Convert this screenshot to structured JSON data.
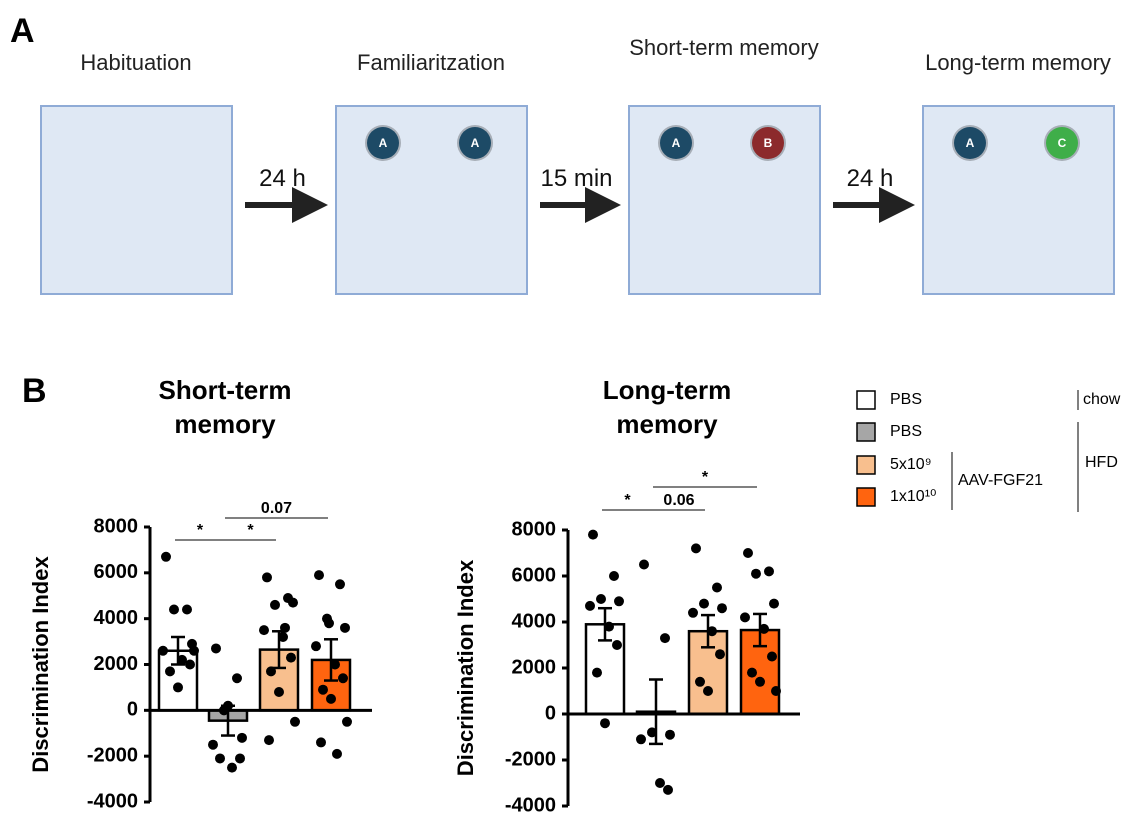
{
  "panel_labels": [
    "A",
    "B"
  ],
  "protocol": {
    "stages": [
      {
        "title": "Habituation",
        "objects": []
      },
      {
        "title": "Familiaritzation",
        "objects": [
          {
            "label": "A",
            "color": "#1d4a66"
          },
          {
            "label": "A",
            "color": "#1d4a66"
          }
        ]
      },
      {
        "title": "Short-term memory",
        "objects": [
          {
            "label": "A",
            "color": "#1d4a66"
          },
          {
            "label": "B",
            "color": "#8c2a2c"
          }
        ]
      },
      {
        "title": "Long-term memory",
        "objects": [
          {
            "label": "A",
            "color": "#1d4a66"
          },
          {
            "label": "C",
            "color": "#3fae49"
          }
        ]
      }
    ],
    "intervals": [
      "24 h",
      "15 min",
      "24 h"
    ]
  },
  "legend": {
    "groups": [
      "chow",
      "HFD",
      "AAV-FGF21"
    ]
  },
  "chart_data": [
    {
      "type": "bar",
      "title": "Short-term memory",
      "ylabel": "Discrimination Index",
      "categories": [
        null
      ],
      "ylim": [
        -4000,
        8000
      ],
      "yticks": [
        -4000,
        -2000,
        0,
        2000,
        4000,
        6000,
        8000
      ],
      "series": [
        {
          "name": "PBS",
          "color": "#ffffff",
          "values": [
            2600
          ],
          "errors": [
            600
          ],
          "points": [
            6700,
            4400,
            4400,
            2900,
            2600,
            2200,
            2000,
            1700,
            1000,
            2600
          ]
        },
        {
          "name": "PBS",
          "color": "#a6a6a6",
          "values": [
            -450
          ],
          "errors": [
            650
          ],
          "points": [
            2700,
            1400,
            0,
            -1200,
            -1500,
            -2500,
            -2100,
            -2100,
            200
          ]
        },
        {
          "name": "5x10⁹",
          "color": "#f8bf8e",
          "values": [
            2650
          ],
          "errors": [
            800
          ],
          "points": [
            5800,
            4900,
            4600,
            4700,
            3500,
            3200,
            2300,
            1700,
            800,
            -500,
            -1300,
            3600
          ]
        },
        {
          "name": "1x10¹⁰",
          "color": "#ff640f",
          "values": [
            2200
          ],
          "errors": [
            900
          ],
          "points": [
            5900,
            5500,
            4000,
            3600,
            2800,
            2000,
            1400,
            900,
            500,
            -500,
            -1400,
            -1900,
            3800
          ]
        }
      ],
      "annotations": [
        {
          "text": "*",
          "between": [
            0,
            1
          ]
        },
        {
          "text": "*",
          "between": [
            1,
            2
          ]
        },
        {
          "text": "0.07",
          "between": [
            1,
            3
          ]
        }
      ]
    },
    {
      "type": "bar",
      "title": "Long-term memory",
      "ylabel": "Discrimination Index",
      "categories": [
        null
      ],
      "ylim": [
        -4000,
        8000
      ],
      "yticks": [
        -4000,
        -2000,
        0,
        2000,
        4000,
        6000,
        8000
      ],
      "series": [
        {
          "color": "#ffffff",
          "values": [
            3900
          ],
          "errors": [
            700
          ],
          "points": [
            7800,
            6000,
            5000,
            4900,
            4700,
            3800,
            3000,
            1800,
            -400
          ]
        },
        {
          "color": "#a6a6a6",
          "values": [
            100
          ],
          "errors": [
            1400
          ],
          "points": [
            6500,
            3300,
            -800,
            -900,
            -1100,
            -3000,
            -3300
          ]
        },
        {
          "color": "#f8bf8e",
          "values": [
            3600
          ],
          "errors": [
            700
          ],
          "points": [
            7200,
            5500,
            4800,
            4600,
            4400,
            3600,
            2600,
            1400,
            1000
          ]
        },
        {
          "color": "#ff640f",
          "values": [
            3650
          ],
          "errors": [
            700
          ],
          "points": [
            7000,
            6200,
            6100,
            4800,
            4200,
            3700,
            2500,
            1800,
            1400,
            1000
          ]
        }
      ],
      "annotations": [
        {
          "text": "*",
          "between": [
            0,
            1
          ]
        },
        {
          "text": "0.06",
          "between": [
            1,
            2
          ]
        },
        {
          "text": "*",
          "between": [
            1,
            3
          ]
        }
      ]
    }
  ]
}
